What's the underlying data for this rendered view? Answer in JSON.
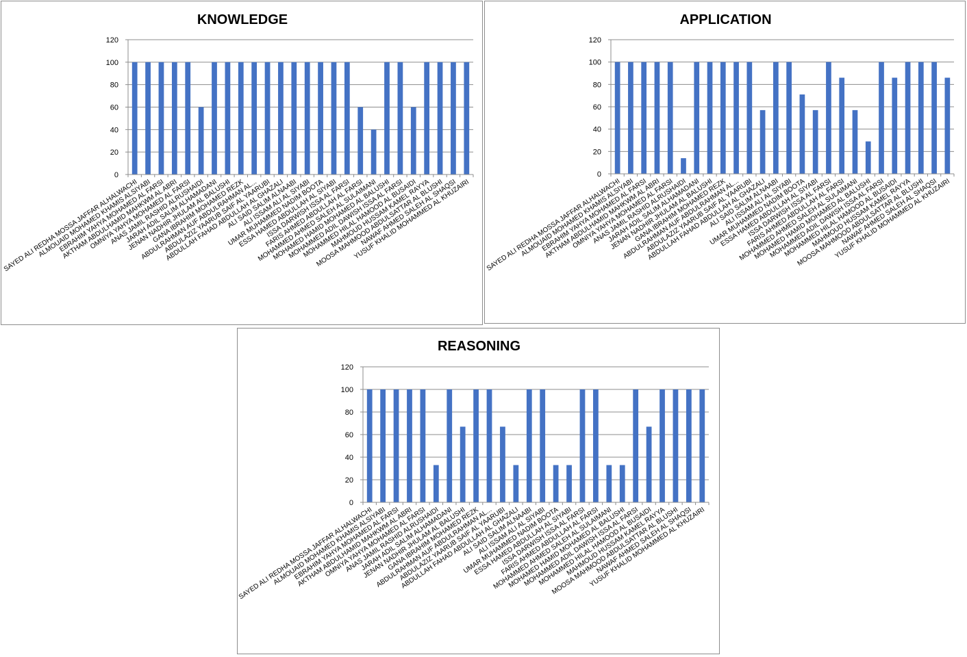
{
  "chart_data": [
    {
      "type": "bar",
      "title": "KNOWLEDGE",
      "xlabel": "",
      "ylabel": "",
      "ylim": [
        0,
        120
      ],
      "yticks": [
        0,
        20,
        40,
        60,
        80,
        100,
        120
      ],
      "grid": true,
      "bar_color": "#4472C4",
      "categories": [
        "SAYED ALI REDHA MOSSA JAFFAR ALHALWACHI",
        "ALMOUAID MOHAMED KHAMIS ALSIYABI",
        "EBRAHIM YAHYA MOHAMED AL FARSI",
        "AKTHAM ABDULHAMID MAHKWM AL ABRI",
        "OMNIYA YAHYA MOHAMED AL FARSI",
        "ANAS JAMIL RASHID ALRUSHAIDI",
        "JARAH ADIL SALIM ALHAMADANI",
        "JENAN NADHIR JHULAM AL BALUSHI",
        "GANA IBRAHIM MOHAMED REZK",
        "ABDULRAHMAN AUF ABDULRAHMAN AL...",
        "ABDULAZIZ YAARUB SAIF AL YAARUBI",
        "ABDULLAH FAHAD ABDULLAH AL GHAZALI",
        "ALI SAID SALIM ALNAABI",
        "ALI ISSAM ALI AL SIYABI",
        "UMAR MUHAMMED NADIM BOOTA",
        "ESSA HAMED ABDULLAH AL SIYABI",
        "ISSA DARWISH ISSA AL FARSI",
        "FARIS AHMED ABDULLAH AL FARSI",
        "MOHAMMED AHMED SALEH AL SULAIMANI",
        "MOHAMED HAMID MOHAMED AL BALUSHI",
        "MOHAMMED ADIL DAWISH ISSA AL FARSI",
        "MOHAMMED HILAL HAMOOD AL BUSAIDI",
        "MAHMOUD HUSSAM KAMEL RAYYA",
        "MOOSA MAHMOOD ABDULSATTAR AL BLUSHI",
        "NAWAF AHMED SALEH AL SHAQSI",
        "YUSUF KHALID MOHAMMED AL KHUZAIRI"
      ],
      "values": [
        100,
        100,
        100,
        100,
        100,
        60,
        100,
        100,
        100,
        100,
        100,
        100,
        100,
        100,
        100,
        100,
        100,
        60,
        40,
        100,
        100,
        60,
        100,
        100,
        100,
        100
      ]
    },
    {
      "type": "bar",
      "title": "APPLICATION",
      "xlabel": "",
      "ylabel": "",
      "ylim": [
        0,
        120
      ],
      "yticks": [
        0,
        20,
        40,
        60,
        80,
        100,
        120
      ],
      "grid": true,
      "bar_color": "#4472C4",
      "categories": [
        "SAYED ALI REDHA MOSSA JAFFAR ALHALWACHI",
        "ALMOUAID MOHAMED KHAMIS ALSIYABI",
        "EBRAHIM YAHYA MOHAMED AL FARSI",
        "AKTHAM ABDULHAMID MAHKWM AL ABRI",
        "OMNIYA YAHYA MOHAMED AL FARSI",
        "ANAS JAMIL RASHID ALRUSHAIDI",
        "JARAH ADIL SALIM ALHAMADANI",
        "JENAN NADHIR JHULAM AL BALUSHI",
        "GANA IBRAHIM MOHAMED REZK",
        "ABDULRAHMAN AUF ABDULRAHMAN AL...",
        "ABDULAZIZ YAARUB SAIF AL YAARUBI",
        "ABDULLAH FAHAD ABDULLAH AL GHAZALI",
        "ALI SAID SALIM ALNAABI",
        "ALI ISSAM ALI AL SIYABI",
        "UMAR MUHAMMED NADIM BOOTA",
        "ESSA HAMED ABDULLAH AL SIYABI",
        "ISSA DARWISH ISSA AL FARSI",
        "FARIS AHMED ABDULLAH AL FARSI",
        "MOHAMMED AHMED SALEH AL SULAIMANI",
        "MOHAMED HAMID MOHAMED AL BALUSHI",
        "MOHAMMED ADIL DAWISH ISSA AL FARSI",
        "MOHAMMED HILAL HAMOOD AL BUSAIDI",
        "MAHMOUD HUSSAM KAMEL RAYYA",
        "MOOSA MAHMOOD ABDULSATTAR AL BLUSHI",
        "NAWAF AHMED SALEH AL SHAQSI",
        "YUSUF KHALID MOHAMMED AL KHUZAIRI"
      ],
      "values": [
        100,
        100,
        100,
        100,
        100,
        14,
        100,
        100,
        100,
        100,
        100,
        57,
        100,
        100,
        71,
        57,
        100,
        86,
        57,
        29,
        100,
        86,
        100,
        100,
        100,
        86
      ]
    },
    {
      "type": "bar",
      "title": "REASONING",
      "xlabel": "",
      "ylabel": "",
      "ylim": [
        0,
        120
      ],
      "yticks": [
        0,
        20,
        40,
        60,
        80,
        100,
        120
      ],
      "grid": true,
      "bar_color": "#4472C4",
      "categories": [
        "SAYED ALI REDHA MOSSA JAFFAR ALHALWACHI",
        "ALMOUAID MOHAMED KHAMIS ALSIYABI",
        "EBRAHIM YAHYA MOHAMED AL FARSI",
        "AKTHAM ABDULHAMID MAHKWM AL ABRI",
        "OMNIYA YAHYA MOHAMED AL FARSI",
        "ANAS JAMIL RASHID ALRUSHAIDI",
        "JARAH ADIL SALIM ALHAMADANI",
        "JENAN NADHIR JHULAM AL BALUSHI",
        "GANA IBRAHIM MOHAMED REZK",
        "ABDULRAHMAN AUF ABDULRAHMAN AL...",
        "ABDULAZIZ YAARUB SAIF AL YAARUBI",
        "ABDULLAH FAHAD ABDULLAH AL GHAZALI",
        "ALI SAID SALIM ALNAABI",
        "ALI ISSAM ALI AL SIYABI",
        "UMAR MUHAMMED NADIM BOOTA",
        "ESSA HAMED ABDULLAH AL SIYABI",
        "ISSA DARWISH ISSA AL FARSI",
        "FARIS AHMED ABDULLAH AL FARSI",
        "MOHAMMED AHMED SALEH AL SULAIMANI",
        "MOHAMED HAMID MOHAMED AL BALUSHI",
        "MOHAMMED ADIL DAWISH ISSA AL FARSI",
        "MOHAMMED HILAL HAMOOD AL BUSAIDI",
        "MAHMOUD HUSSAM KAMEL RAYYA",
        "MOOSA MAHMOOD ABDULSATTAR AL BLUSHI",
        "NAWAF AHMED SALEH AL SHAQSI",
        "YUSUF KHALID MOHAMMED AL KHUZAIRI"
      ],
      "values": [
        100,
        100,
        100,
        100,
        100,
        33,
        100,
        67,
        100,
        100,
        67,
        33,
        100,
        100,
        33,
        33,
        100,
        100,
        33,
        33,
        100,
        67,
        100,
        100,
        100,
        100
      ]
    }
  ]
}
